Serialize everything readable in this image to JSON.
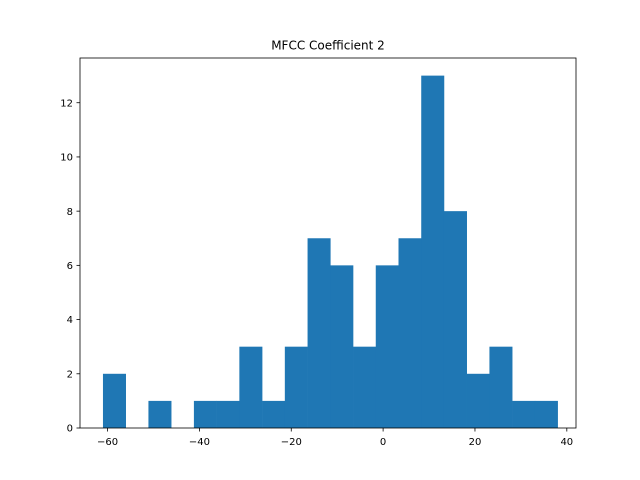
{
  "chart_data": {
    "type": "bar",
    "title": "MFCC Coefficient 2",
    "xlabel": "",
    "ylabel": "",
    "xlim": [
      -66.0,
      42.0
    ],
    "ylim": [
      0,
      13.65
    ],
    "bins": [
      {
        "x0": -61.0,
        "x1": -56.05,
        "count": 2
      },
      {
        "x0": -56.05,
        "x1": -51.1,
        "count": 0
      },
      {
        "x0": -51.1,
        "x1": -46.15,
        "count": 1
      },
      {
        "x0": -46.15,
        "x1": -41.2,
        "count": 0
      },
      {
        "x0": -41.2,
        "x1": -36.25,
        "count": 1
      },
      {
        "x0": -36.25,
        "x1": -31.3,
        "count": 1
      },
      {
        "x0": -31.3,
        "x1": -26.35,
        "count": 3
      },
      {
        "x0": -26.35,
        "x1": -21.4,
        "count": 1
      },
      {
        "x0": -21.4,
        "x1": -16.45,
        "count": 3
      },
      {
        "x0": -16.45,
        "x1": -11.5,
        "count": 7
      },
      {
        "x0": -11.5,
        "x1": -6.55,
        "count": 6
      },
      {
        "x0": -6.55,
        "x1": -1.6,
        "count": 3
      },
      {
        "x0": -1.6,
        "x1": 3.35,
        "count": 6
      },
      {
        "x0": 3.35,
        "x1": 8.3,
        "count": 7
      },
      {
        "x0": 8.3,
        "x1": 13.25,
        "count": 13
      },
      {
        "x0": 13.25,
        "x1": 18.2,
        "count": 8
      },
      {
        "x0": 18.2,
        "x1": 23.15,
        "count": 2
      },
      {
        "x0": 23.15,
        "x1": 28.1,
        "count": 3
      },
      {
        "x0": 28.1,
        "x1": 33.05,
        "count": 1
      },
      {
        "x0": 33.05,
        "x1": 38.0,
        "count": 1
      }
    ],
    "xticks": [
      -60,
      -40,
      -20,
      0,
      20,
      40
    ],
    "xtick_labels": [
      "−60",
      "−40",
      "−20",
      "0",
      "20",
      "40"
    ],
    "yticks": [
      0,
      2,
      4,
      6,
      8,
      10,
      12
    ],
    "ytick_labels": [
      "0",
      "2",
      "4",
      "6",
      "8",
      "10",
      "12"
    ],
    "bar_color": "#1f77b4",
    "grid": false,
    "legend": "none"
  }
}
